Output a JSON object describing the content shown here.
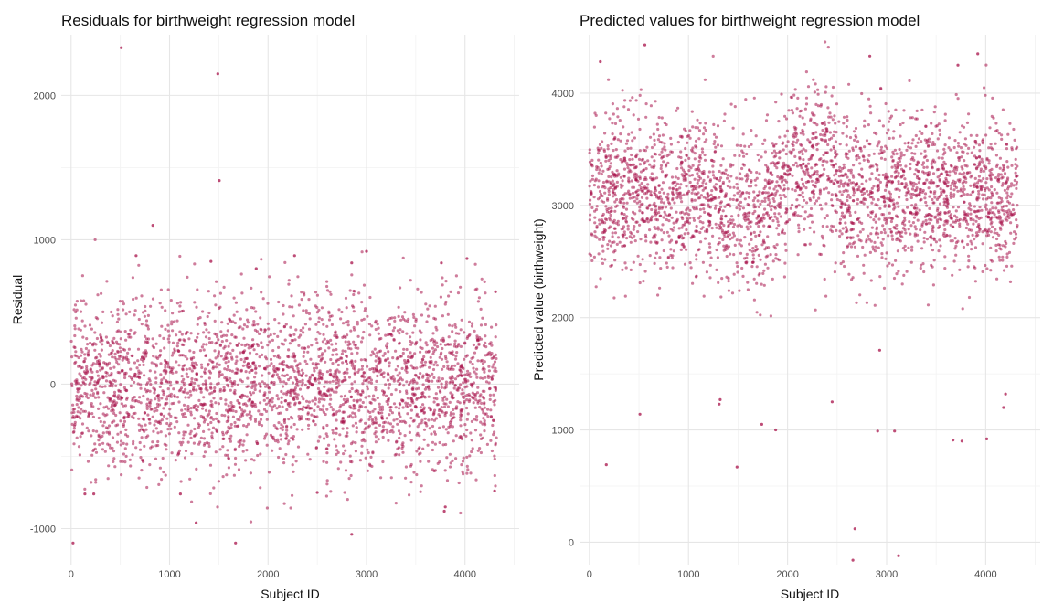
{
  "chart_data": [
    {
      "type": "scatter",
      "title": "Residuals for birthweight regression model",
      "xlabel": "Subject ID",
      "ylabel": "Residual",
      "xlim": [
        -100,
        4550
      ],
      "ylim": [
        -1250,
        2420
      ],
      "x_ticks": [
        0,
        1000,
        2000,
        3000,
        4000
      ],
      "y_ticks": [
        -1000,
        0,
        1000,
        2000
      ],
      "grid": true,
      "point_color": "#a8124a",
      "n_points": 4342,
      "bulk_range": [
        -700,
        700
      ],
      "bulk_center": 0,
      "points": [
        {
          "x": 510,
          "y": 2330
        },
        {
          "x": 1490,
          "y": 2150
        },
        {
          "x": 1505,
          "y": 1410
        },
        {
          "x": 830,
          "y": 1100
        },
        {
          "x": 3000,
          "y": 920
        },
        {
          "x": 4020,
          "y": 870
        },
        {
          "x": 2270,
          "y": 890
        },
        {
          "x": 660,
          "y": 890
        },
        {
          "x": 2850,
          "y": 840
        },
        {
          "x": 1420,
          "y": 850
        },
        {
          "x": 3760,
          "y": 840
        },
        {
          "x": 1880,
          "y": 800
        },
        {
          "x": 4310,
          "y": 640
        },
        {
          "x": 1270,
          "y": -960
        },
        {
          "x": 2850,
          "y": -1040
        },
        {
          "x": 20,
          "y": -1100
        },
        {
          "x": 1670,
          "y": -1100
        },
        {
          "x": 3800,
          "y": -850
        },
        {
          "x": 3790,
          "y": -880
        },
        {
          "x": 140,
          "y": -760
        },
        {
          "x": 230,
          "y": -760
        },
        {
          "x": 2500,
          "y": -750
        },
        {
          "x": 4300,
          "y": -740
        },
        {
          "x": 1110,
          "y": -760
        }
      ]
    },
    {
      "type": "scatter",
      "title": "Predicted values for birthweight regression model",
      "xlabel": "Subject ID",
      "ylabel": "Predicted value (birthweight)",
      "xlim": [
        -100,
        4550
      ],
      "ylim": [
        -200,
        4520
      ],
      "x_ticks": [
        0,
        1000,
        2000,
        3000,
        4000
      ],
      "y_ticks": [
        0,
        1000,
        2000,
        3000,
        4000
      ],
      "grid": true,
      "point_color": "#a8124a",
      "n_points": 4342,
      "bulk_range": [
        2300,
        3950
      ],
      "bulk_center": 3100,
      "points": [
        {
          "x": 560,
          "y": 4430
        },
        {
          "x": 3920,
          "y": 4350
        },
        {
          "x": 2830,
          "y": 4330
        },
        {
          "x": 110,
          "y": 4280
        },
        {
          "x": 3720,
          "y": 4250
        },
        {
          "x": 170,
          "y": 690
        },
        {
          "x": 1490,
          "y": 670
        },
        {
          "x": 510,
          "y": 1140
        },
        {
          "x": 2680,
          "y": 120
        },
        {
          "x": 2660,
          "y": -160
        },
        {
          "x": 3120,
          "y": -120
        },
        {
          "x": 1880,
          "y": 1000
        },
        {
          "x": 2910,
          "y": 990
        },
        {
          "x": 3080,
          "y": 990
        },
        {
          "x": 3670,
          "y": 910
        },
        {
          "x": 3760,
          "y": 900
        },
        {
          "x": 4010,
          "y": 920
        },
        {
          "x": 1320,
          "y": 1270
        },
        {
          "x": 1310,
          "y": 1230
        },
        {
          "x": 2450,
          "y": 1250
        },
        {
          "x": 4200,
          "y": 1320
        },
        {
          "x": 4180,
          "y": 1200
        },
        {
          "x": 1740,
          "y": 1050
        },
        {
          "x": 2930,
          "y": 1710
        }
      ]
    }
  ]
}
